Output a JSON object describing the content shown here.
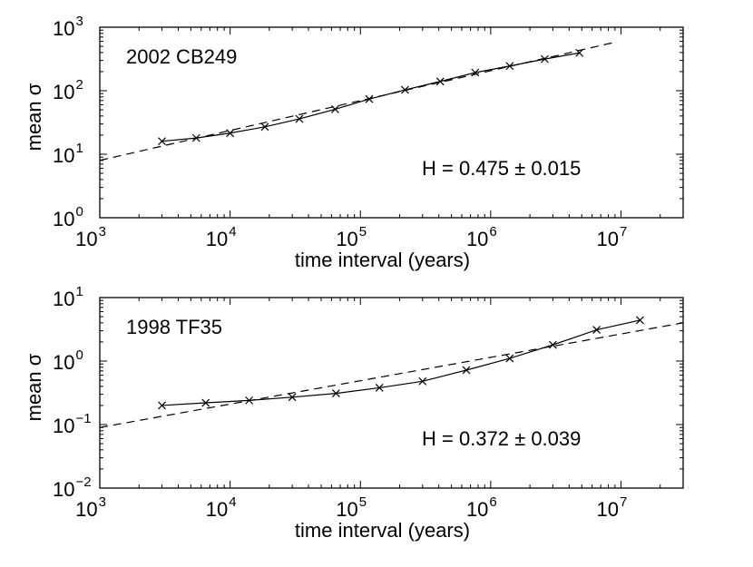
{
  "chart_data": [
    {
      "type": "line",
      "xscale": "log",
      "yscale": "log",
      "xlabel": "time interval (years)",
      "ylabel_prefix": "mean ",
      "ylabel_symbol": "σ",
      "xlim": [
        1000,
        30000000
      ],
      "ylim": [
        1,
        1000
      ],
      "x_ticks": [
        {
          "base": "10",
          "exp": "3",
          "value": 1000
        },
        {
          "base": "10",
          "exp": "4",
          "value": 10000
        },
        {
          "base": "10",
          "exp": "5",
          "value": 100000
        },
        {
          "base": "10",
          "exp": "6",
          "value": 1000000
        },
        {
          "base": "10",
          "exp": "7",
          "value": 10000000
        }
      ],
      "y_ticks": [
        {
          "base": "10",
          "exp": "0",
          "value": 1
        },
        {
          "base": "10",
          "exp": "1",
          "value": 10
        },
        {
          "base": "10",
          "exp": "2",
          "value": 100
        },
        {
          "base": "10",
          "exp": "3",
          "value": 1000
        }
      ],
      "object_label": "2002 CB249",
      "annotation": "H = 0.475 ± 0.015",
      "series": [
        {
          "name": "data",
          "style": "solid-x-markers",
          "x": [
            3000,
            5500,
            10000,
            18500,
            34000,
            64000,
            117000,
            220000,
            410000,
            760000,
            1400000,
            2600000,
            4800000
          ],
          "y": [
            16,
            18,
            21.5,
            27,
            36,
            51,
            74,
            103,
            140,
            193,
            245,
            315,
            395
          ]
        },
        {
          "name": "fit",
          "style": "dashed",
          "x": [
            1000,
            9000000
          ],
          "y": [
            8,
            580
          ]
        }
      ]
    },
    {
      "type": "line",
      "xscale": "log",
      "yscale": "log",
      "xlabel": "time interval (years)",
      "ylabel_prefix": "mean ",
      "ylabel_symbol": "σ",
      "xlim": [
        1000,
        30000000
      ],
      "ylim": [
        0.01,
        10
      ],
      "x_ticks": [
        {
          "base": "10",
          "exp": "3",
          "value": 1000
        },
        {
          "base": "10",
          "exp": "4",
          "value": 10000
        },
        {
          "base": "10",
          "exp": "5",
          "value": 100000
        },
        {
          "base": "10",
          "exp": "6",
          "value": 1000000
        },
        {
          "base": "10",
          "exp": "7",
          "value": 10000000
        }
      ],
      "y_ticks": [
        {
          "base": "10",
          "exp": "−2",
          "value": 0.01
        },
        {
          "base": "10",
          "exp": "−1",
          "value": 0.1
        },
        {
          "base": "10",
          "exp": "0",
          "value": 1
        },
        {
          "base": "10",
          "exp": "1",
          "value": 10
        }
      ],
      "object_label": "1998 TF35",
      "annotation": "H = 0.372 ± 0.039",
      "series": [
        {
          "name": "data",
          "style": "solid-x-markers",
          "x": [
            3000,
            6500,
            14000,
            30000,
            65000,
            140000,
            300000,
            650000,
            1400000,
            3000000,
            6500000,
            14000000
          ],
          "y": [
            0.2,
            0.22,
            0.24,
            0.27,
            0.31,
            0.38,
            0.48,
            0.72,
            1.1,
            1.8,
            3.1,
            4.4
          ]
        },
        {
          "name": "fit",
          "style": "dashed",
          "x": [
            1000,
            30000000
          ],
          "y": [
            0.09,
            4
          ]
        }
      ]
    }
  ]
}
